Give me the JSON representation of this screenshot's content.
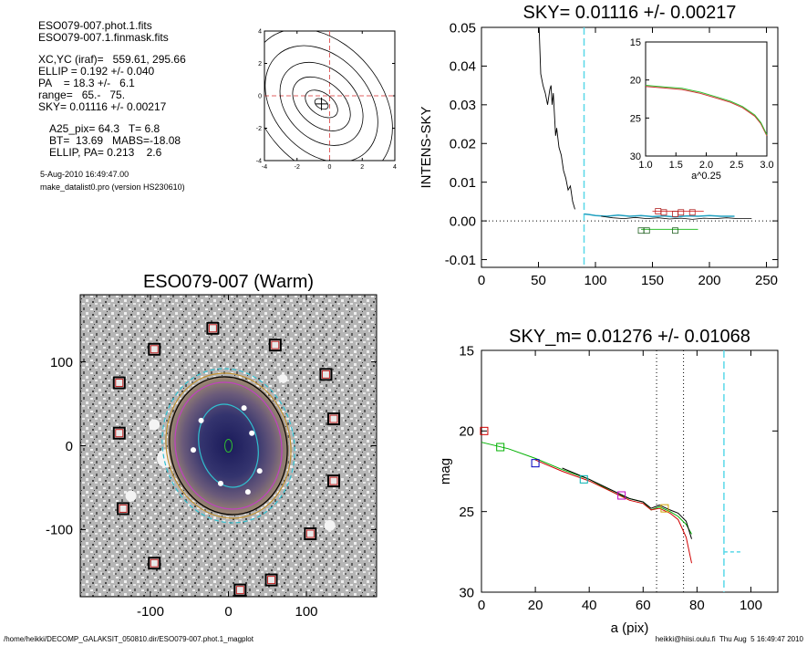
{
  "header": {
    "lines": [
      "ESO079-007.phot.1.fits",
      "ESO079-007.1.finmask.fits",
      "XC,YC (iraf)=   559.61, 295.66",
      "ELLIP = 0.192 +/- 0.040",
      "PA    = 18.3 +/-   6.1",
      "range=   65.-   75.",
      "SKY= 0.01116 +/- 0.00217",
      "A25_pix= 64.3   T= 6.8",
      "BT=  13.69   MABS=-18.08",
      "ELLIP, PA= 0.213    2.6",
      "5-Aug-2010 16:49:47.00",
      "make_datalist0.pro (version HS230610)"
    ]
  },
  "footer": {
    "left": "/home/heikki/DECOMP_GALAKSIT_050810.dir/ESO079-007.phot.1_magplot",
    "right": "heikki@hiisi.oulu.fi  Thu Aug  5 16:49:47 2010"
  },
  "chart_data": [
    {
      "type": "line",
      "panel": "contour",
      "xlim": [
        -4,
        4
      ],
      "ylim": [
        -4,
        4
      ],
      "x_ticks": [
        "-4",
        "-2",
        "0",
        "2",
        "4"
      ],
      "y_ticks": [
        "-4",
        "-2",
        "0",
        "2",
        "4"
      ],
      "center": [
        -0.5,
        -0.5
      ]
    },
    {
      "type": "line",
      "panel": "sky",
      "title": "SKY= 0.01116 +/- 0.00217",
      "ylabel": "INTENS-SKY",
      "xlim": [
        0,
        260
      ],
      "ylim": [
        -0.012,
        0.05
      ],
      "x_ticks": [
        "0",
        "50",
        "100",
        "150",
        "200",
        "250"
      ],
      "y_ticks": [
        "-0.01",
        "0.00",
        "0.01",
        "0.02",
        "0.03",
        "0.04",
        "0.05"
      ],
      "vline_x": 90,
      "profile": [
        [
          50,
          0.055
        ],
        [
          52,
          0.038
        ],
        [
          54,
          0.035
        ],
        [
          56,
          0.033
        ],
        [
          58,
          0.03
        ],
        [
          60,
          0.034
        ],
        [
          61,
          0.035
        ],
        [
          62,
          0.03
        ],
        [
          63,
          0.033
        ],
        [
          65,
          0.022
        ],
        [
          66,
          0.024
        ],
        [
          68,
          0.019
        ],
        [
          70,
          0.017
        ],
        [
          72,
          0.013
        ],
        [
          74,
          0.011
        ],
        [
          76,
          0.008
        ],
        [
          78,
          0.009
        ],
        [
          80,
          0.005
        ],
        [
          82,
          0.003
        ]
      ],
      "sky_steps": [
        [
          90,
          0.0018
        ],
        [
          95,
          0.0016
        ],
        [
          100,
          0.0014
        ],
        [
          110,
          0.0012
        ],
        [
          120,
          0.0015
        ],
        [
          130,
          0.0012
        ],
        [
          140,
          0.0014
        ],
        [
          150,
          0.0011
        ],
        [
          160,
          0.0013
        ],
        [
          170,
          0.001
        ],
        [
          180,
          0.0013
        ],
        [
          190,
          0.0012
        ],
        [
          200,
          0.0014
        ],
        [
          210,
          0.0012
        ],
        [
          222,
          0.0012
        ]
      ],
      "boxes": [
        [
          155,
          0.0025
        ],
        [
          160,
          0.0022
        ],
        [
          170,
          0.0018
        ],
        [
          175,
          0.0022
        ],
        [
          185,
          0.0022
        ],
        [
          140,
          -0.0025
        ],
        [
          145,
          -0.0025
        ],
        [
          170,
          -0.0025
        ]
      ],
      "inset": {
        "xlabel": "a^0.25",
        "xlim": [
          1.0,
          3.0
        ],
        "ylim": [
          15,
          30
        ],
        "x_ticks": [
          "1.0",
          "1.5",
          "2.0",
          "2.5",
          "3.0"
        ],
        "y_ticks": [
          "15",
          "20",
          "25",
          "30"
        ],
        "curve": [
          [
            1.0,
            20.7
          ],
          [
            1.3,
            20.9
          ],
          [
            1.6,
            21.1
          ],
          [
            1.9,
            21.6
          ],
          [
            2.2,
            22.3
          ],
          [
            2.4,
            22.8
          ],
          [
            2.6,
            23.5
          ],
          [
            2.8,
            24.6
          ],
          [
            2.9,
            25.6
          ],
          [
            3.0,
            27.2
          ]
        ]
      }
    },
    {
      "type": "scatter",
      "panel": "image",
      "title": "ESO079-007 (Warm)",
      "xlim": [
        -190,
        190
      ],
      "ylim": [
        -180,
        180
      ],
      "x_ticks": [
        "-100",
        "0",
        "100"
      ],
      "y_ticks": [
        "-100",
        "0",
        "100"
      ],
      "masked_stars": [
        [
          -20,
          140
        ],
        [
          -95,
          115
        ],
        [
          60,
          120
        ],
        [
          -140,
          75
        ],
        [
          125,
          85
        ],
        [
          -140,
          15
        ],
        [
          135,
          32
        ],
        [
          135,
          -42
        ],
        [
          -135,
          -75
        ],
        [
          105,
          -105
        ],
        [
          -95,
          -140
        ],
        [
          55,
          -160
        ],
        [
          15,
          -172
        ]
      ]
    },
    {
      "type": "line",
      "panel": "mag",
      "title": "SKY_m=  0.01276 +/- 0.01068",
      "xlabel": "a (pix)",
      "ylabel": "mag",
      "xlim": [
        0,
        110
      ],
      "ylim": [
        15,
        30
      ],
      "x_ticks": [
        "0",
        "20",
        "40",
        "60",
        "80",
        "100"
      ],
      "y_ticks": [
        "15",
        "20",
        "25",
        "30"
      ],
      "vlines_dotted": [
        65,
        75
      ],
      "vline_dashed": 90,
      "sky_level_mag": 27.5,
      "series": [
        {
          "color": "#00b000",
          "values": [
            [
              0,
              20.7
            ],
            [
              10,
              21.1
            ],
            [
              20,
              21.7
            ],
            [
              30,
              22.4
            ],
            [
              40,
              23.0
            ],
            [
              50,
              23.9
            ],
            [
              55,
              24.2
            ],
            [
              60,
              24.4
            ],
            [
              63,
              24.9
            ],
            [
              66,
              24.7
            ],
            [
              70,
              25.0
            ],
            [
              73,
              25.3
            ],
            [
              76,
              25.8
            ],
            [
              78,
              26.4
            ]
          ]
        },
        {
          "color": "#d00000",
          "values": [
            [
              20,
              21.8
            ],
            [
              30,
              22.5
            ],
            [
              40,
              23.1
            ],
            [
              50,
              23.9
            ],
            [
              55,
              24.3
            ],
            [
              60,
              24.5
            ],
            [
              63,
              24.9
            ],
            [
              66,
              24.8
            ],
            [
              70,
              25.1
            ],
            [
              73,
              25.5
            ],
            [
              76,
              26.6
            ],
            [
              78,
              28.2
            ]
          ]
        },
        {
          "color": "#000000",
          "values": [
            [
              30,
              22.3
            ],
            [
              40,
              23.0
            ],
            [
              50,
              23.8
            ],
            [
              55,
              24.2
            ],
            [
              60,
              24.4
            ],
            [
              63,
              24.8
            ],
            [
              66,
              24.6
            ],
            [
              70,
              24.9
            ],
            [
              73,
              25.1
            ],
            [
              76,
              25.6
            ],
            [
              78,
              26.7
            ]
          ]
        }
      ],
      "boxes": [
        {
          "x": 1,
          "y": 20.0,
          "color": "#d00000"
        },
        {
          "x": 7,
          "y": 21.0,
          "color": "#00b000"
        },
        {
          "x": 20,
          "y": 22.0,
          "color": "#0000c0"
        },
        {
          "x": 38,
          "y": 23.0,
          "color": "#00b0b0"
        },
        {
          "x": 52,
          "y": 24.0,
          "color": "#c000c0"
        },
        {
          "x": 68,
          "y": 24.8,
          "color": "#d0a000"
        }
      ]
    }
  ]
}
